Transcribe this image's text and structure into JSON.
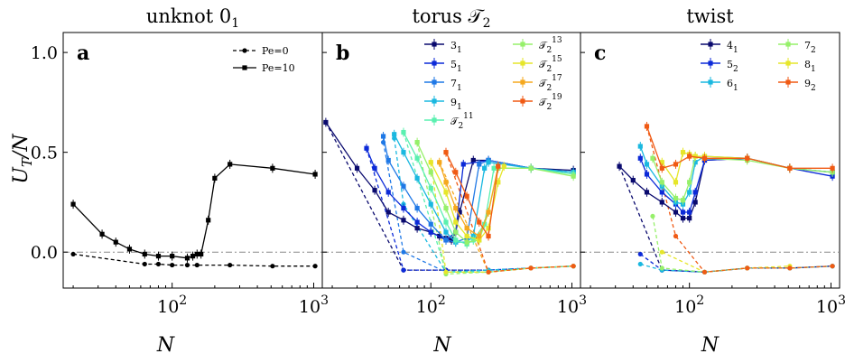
{
  "chart_data": [
    {
      "type": "line",
      "panel_label": "a",
      "title": "unknot 0",
      "title_sub": "1",
      "xlabel": "N",
      "ylabel": "U",
      "ylabel_sub": "T",
      "ylabel_tail": "/N",
      "x_scale": "log",
      "xlim": [
        17,
        1150
      ],
      "ylim": [
        -0.18,
        1.1
      ],
      "reference_line_y": 0.0,
      "legend_position": "top-right",
      "series": [
        {
          "name": "Pe=0",
          "style": "dashed",
          "marker": "circle",
          "color": "#000000",
          "x": [
            20,
            64,
            80,
            100,
            128,
            150,
            256,
            512,
            1024
          ],
          "y": [
            -0.01,
            -0.06,
            -0.06,
            -0.065,
            -0.065,
            -0.065,
            -0.065,
            -0.07,
            -0.07
          ]
        },
        {
          "name": "Pe=10",
          "style": "solid",
          "marker": "square",
          "color": "#000000",
          "x": [
            20,
            32,
            40,
            50,
            64,
            80,
            100,
            128,
            140,
            150,
            160,
            180,
            200,
            256,
            512,
            1024
          ],
          "y": [
            0.24,
            0.09,
            0.05,
            0.015,
            -0.01,
            -0.02,
            -0.02,
            -0.03,
            -0.02,
            -0.01,
            -0.01,
            0.16,
            0.37,
            0.44,
            0.42,
            0.39
          ]
        }
      ]
    },
    {
      "type": "line",
      "panel_label": "b",
      "title": "torus 𝒯",
      "title_sub": "2",
      "xlabel": "N",
      "x_scale": "log",
      "xlim": [
        17,
        1150
      ],
      "ylim": [
        -0.18,
        1.1
      ],
      "reference_line_y": 0.0,
      "legend_position": "top-right",
      "note_style": "solid = Pe=10 (square markers), dashed = Pe=0 (circle markers)",
      "series": [
        {
          "name": "3",
          "sub": "1",
          "color": "#0a0a6e",
          "pe10": {
            "x": [
              18,
              30,
              40,
              50,
              64,
              80,
              100,
              115,
              128,
              140,
              150,
              160,
              200,
              256,
              512,
              1024
            ],
            "y": [
              0.65,
              0.42,
              0.31,
              0.2,
              0.16,
              0.12,
              0.1,
              0.08,
              0.07,
              0.06,
              0.1,
              0.2,
              0.46,
              0.46,
              0.42,
              0.41
            ]
          },
          "pe0": {
            "x": [
              18,
              64,
              128,
              256,
              512,
              1024
            ],
            "y": [
              0.65,
              -0.09,
              -0.09,
              -0.09,
              -0.08,
              -0.07
            ]
          }
        },
        {
          "name": "5",
          "sub": "1",
          "color": "#0c2ad8",
          "pe10": {
            "x": [
              35,
              40,
              50,
              64,
              80,
              100,
              128,
              150,
              170,
              256,
              512,
              1024
            ],
            "y": [
              0.52,
              0.42,
              0.3,
              0.22,
              0.15,
              0.1,
              0.06,
              0.1,
              0.44,
              0.46,
              0.42,
              0.4
            ]
          },
          "pe0": {
            "x": [
              35,
              64,
              128,
              256,
              512,
              1024
            ],
            "y": [
              0.52,
              -0.09,
              -0.09,
              -0.09,
              -0.08,
              -0.07
            ]
          }
        },
        {
          "name": "7",
          "sub": "1",
          "color": "#1f78e6",
          "pe10": {
            "x": [
              46,
              50,
              64,
              80,
              100,
              128,
              150,
              180,
              220,
              256,
              512,
              1024
            ],
            "y": [
              0.58,
              0.46,
              0.33,
              0.22,
              0.14,
              0.06,
              0.05,
              0.07,
              0.44,
              0.46,
              0.42,
              0.4
            ]
          },
          "pe0": {
            "x": [
              46,
              64,
              128,
              256,
              512,
              1024
            ],
            "y": [
              0.55,
              0.0,
              -0.1,
              -0.09,
              -0.08,
              -0.07
            ]
          }
        },
        {
          "name": "9",
          "sub": "1",
          "color": "#1ab8e0",
          "pe10": {
            "x": [
              55,
              64,
              80,
              100,
              128,
              150,
              180,
              200,
              240,
              256,
              512,
              1024
            ],
            "y": [
              0.59,
              0.5,
              0.37,
              0.24,
              0.1,
              0.05,
              0.05,
              0.08,
              0.42,
              0.45,
              0.42,
              0.4
            ]
          },
          "pe0": {
            "x": [
              55,
              64,
              128,
              256,
              512,
              1024
            ],
            "y": [
              0.57,
              0.24,
              -0.1,
              -0.09,
              -0.08,
              -0.07
            ]
          }
        },
        {
          "name": "𝒯",
          "sub": "2",
          "sup": "11",
          "color": "#5af0b0",
          "pe10": {
            "x": [
              64,
              80,
              100,
              128,
              150,
              180,
              200,
              240,
              280,
              512,
              1024
            ],
            "y": [
              0.6,
              0.47,
              0.32,
              0.15,
              0.06,
              0.04,
              0.06,
              0.14,
              0.42,
              0.42,
              0.39
            ]
          },
          "pe0": {
            "x": [
              64,
              128,
              256,
              512,
              1024
            ],
            "y": [
              0.6,
              -0.1,
              -0.1,
              -0.08,
              -0.07
            ]
          }
        },
        {
          "name": "𝒯",
          "sub": "2",
          "sup": "13",
          "color": "#96f06a",
          "pe10": {
            "x": [
              80,
              100,
              128,
              150,
              180,
              220,
              256,
              300,
              512,
              1024
            ],
            "y": [
              0.55,
              0.4,
              0.22,
              0.1,
              0.05,
              0.06,
              0.2,
              0.42,
              0.42,
              0.38
            ]
          },
          "pe0": {
            "x": [
              80,
              128,
              256,
              512,
              1024
            ],
            "y": [
              0.55,
              -0.11,
              -0.1,
              -0.08,
              -0.07
            ]
          }
        },
        {
          "name": "𝒯",
          "sub": "2",
          "sup": "15",
          "color": "#e6e62a",
          "pe10": {
            "x": [
              100,
              128,
              150,
              180,
              220,
              256,
              300,
              330
            ],
            "y": [
              0.45,
              0.3,
              0.15,
              0.08,
              0.06,
              0.12,
              0.35,
              0.43
            ]
          },
          "pe0": {
            "x": [
              100,
              128,
              256,
              512,
              1024
            ],
            "y": [
              0.45,
              -0.1,
              -0.1,
              -0.08,
              -0.07
            ]
          }
        },
        {
          "name": "𝒯",
          "sub": "2",
          "sup": "17",
          "color": "#f5a81e",
          "pe10": {
            "x": [
              115,
              128,
              150,
              180,
              220,
              256,
              300
            ],
            "y": [
              0.45,
              0.35,
              0.22,
              0.12,
              0.08,
              0.2,
              0.43
            ]
          },
          "pe0": {
            "x": [
              115,
              256,
              512,
              1024
            ],
            "y": [
              0.45,
              -0.1,
              -0.08,
              -0.07
            ]
          }
        },
        {
          "name": "𝒯",
          "sub": "2",
          "sup": "19",
          "color": "#f05a14",
          "pe10": {
            "x": [
              128,
              150,
              180,
              220,
              256,
              300
            ],
            "y": [
              0.5,
              0.4,
              0.28,
              0.15,
              0.08,
              0.43
            ]
          },
          "pe0": {
            "x": [
              128,
              256,
              512,
              1024
            ],
            "y": [
              0.5,
              -0.1,
              -0.08,
              -0.07
            ]
          }
        }
      ]
    },
    {
      "type": "line",
      "panel_label": "c",
      "title": "twist",
      "xlabel": "N",
      "x_scale": "log",
      "xlim": [
        17,
        1150
      ],
      "ylim": [
        -0.18,
        1.1
      ],
      "reference_line_y": 0.0,
      "legend_position": "top-right",
      "series": [
        {
          "name": "4",
          "sub": "1",
          "color": "#0a0a6e",
          "pe10": {
            "x": [
              32,
              40,
              50,
              64,
              80,
              90,
              100,
              110,
              128,
              256,
              512,
              1024
            ],
            "y": [
              0.43,
              0.36,
              0.3,
              0.25,
              0.2,
              0.17,
              0.17,
              0.25,
              0.46,
              0.47,
              0.42,
              0.4
            ]
          },
          "pe0": {
            "x": [
              32,
              64,
              128,
              256,
              512,
              1024
            ],
            "y": [
              0.43,
              -0.09,
              -0.1,
              -0.08,
              -0.08,
              -0.07
            ]
          }
        },
        {
          "name": "5",
          "sub": "2",
          "color": "#0c2ad8",
          "pe10": {
            "x": [
              45,
              50,
              64,
              80,
              90,
              100,
              110,
              128,
              256,
              512,
              1024
            ],
            "y": [
              0.47,
              0.39,
              0.3,
              0.24,
              0.2,
              0.2,
              0.3,
              0.46,
              0.47,
              0.42,
              0.38
            ]
          },
          "pe0": {
            "x": [
              45,
              64,
              128,
              256,
              512,
              1024
            ],
            "y": [
              -0.01,
              -0.09,
              -0.1,
              -0.08,
              -0.08,
              -0.07
            ]
          }
        },
        {
          "name": "6",
          "sub": "1",
          "color": "#1ab8e0",
          "pe10": {
            "x": [
              45,
              50,
              64,
              80,
              90,
              100,
              110,
              128,
              256,
              512,
              1024
            ],
            "y": [
              0.53,
              0.44,
              0.33,
              0.25,
              0.24,
              0.3,
              0.45,
              0.48,
              0.47,
              0.42,
              0.4
            ]
          },
          "pe0": {
            "x": [
              45,
              64,
              128,
              256,
              512,
              1024
            ],
            "y": [
              -0.06,
              -0.09,
              -0.1,
              -0.08,
              -0.08,
              -0.07
            ]
          }
        },
        {
          "name": "7",
          "sub": "2",
          "color": "#96f06a",
          "pe10": {
            "x": [
              55,
              64,
              80,
              90,
              100,
              110,
              128,
              256,
              512,
              1024
            ],
            "y": [
              0.47,
              0.35,
              0.27,
              0.26,
              0.35,
              0.48,
              0.47,
              0.46,
              0.42,
              0.4
            ]
          },
          "pe0": {
            "x": [
              55,
              64,
              128,
              256,
              512,
              1024
            ],
            "y": [
              0.18,
              -0.08,
              -0.1,
              -0.08,
              -0.08,
              -0.07
            ]
          }
        },
        {
          "name": "8",
          "sub": "1",
          "color": "#e6e62a",
          "pe10": {
            "x": [
              64,
              80,
              90,
              100,
              110,
              128,
              256,
              512
            ],
            "y": [
              0.45,
              0.35,
              0.5,
              0.49,
              0.48,
              0.48,
              0.47,
              0.42
            ]
          },
          "pe0": {
            "x": [
              64,
              128,
              256,
              512
            ],
            "y": [
              0.0,
              -0.1,
              -0.08,
              -0.07
            ]
          }
        },
        {
          "name": "9",
          "sub": "2",
          "color": "#f05a14",
          "pe10": {
            "x": [
              50,
              64,
              80,
              100,
              128,
              256,
              512,
              1024
            ],
            "y": [
              0.63,
              0.42,
              0.44,
              0.48,
              0.47,
              0.47,
              0.42,
              0.42
            ]
          },
          "pe0": {
            "x": [
              50,
              80,
              128,
              256,
              512,
              1024
            ],
            "y": [
              0.63,
              0.08,
              -0.1,
              -0.08,
              -0.08,
              -0.07
            ]
          }
        }
      ]
    }
  ]
}
